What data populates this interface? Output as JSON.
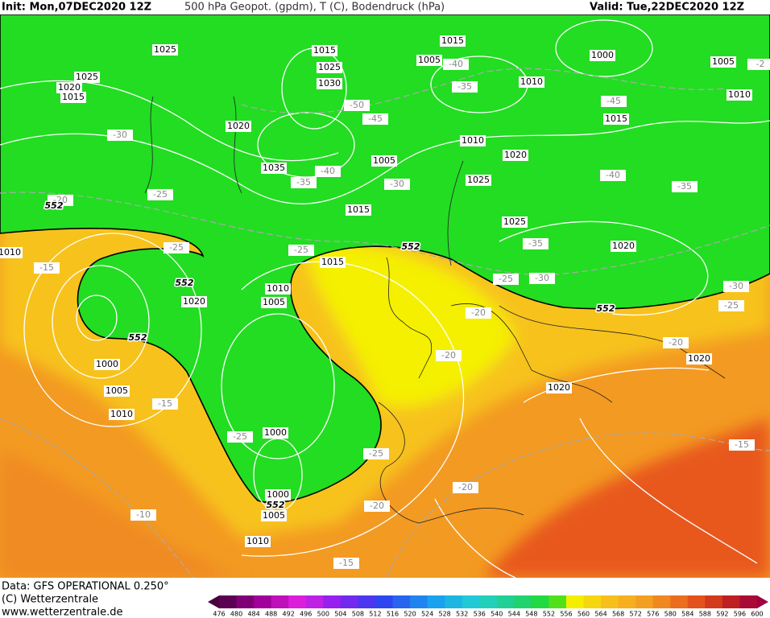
{
  "header": {
    "init": "Init: Mon,07DEC2020 12Z",
    "fields": "500 hPa Geopot. (gpdm), T (C), Bodendruck (hPa)",
    "valid": "Valid: Tue,22DEC2020 12Z"
  },
  "footer": {
    "data": "Data: GFS OPERATIONAL 0.250°",
    "copyright": "(C) Wetterzentrale",
    "url": "www.wetterzentrale.de"
  },
  "colorbar": {
    "labels": [
      476,
      480,
      484,
      488,
      492,
      496,
      500,
      504,
      508,
      512,
      516,
      520,
      524,
      528,
      532,
      536,
      540,
      544,
      548,
      552,
      556,
      560,
      564,
      568,
      572,
      576,
      580,
      584,
      588,
      592,
      596,
      600
    ]
  },
  "pressure_labels": [
    "1025",
    "1025",
    "1020",
    "1015",
    "1015",
    "1025",
    "1030",
    "1015",
    "1005",
    "1000",
    "1005",
    "1010",
    "1010",
    "1015",
    "1020",
    "1010",
    "1020",
    "1035",
    "1005",
    "1025",
    "1015",
    "1025",
    "1020",
    "1010",
    "1015",
    "1010",
    "1005",
    "1020",
    "1020",
    "1000",
    "1005",
    "1010",
    "1020",
    "1000",
    "1000",
    "1005",
    "1010"
  ],
  "temperature_labels": [
    "-40",
    "-35",
    "-45",
    "-50",
    "-45",
    "-30",
    "-40",
    "-35",
    "-30",
    "-40",
    "-35",
    "-25",
    "-20",
    "-25",
    "-25",
    "-35",
    "-25",
    "-30",
    "-30",
    "-25",
    "-15",
    "-20",
    "-20",
    "-20",
    "-15",
    "-25",
    "-25",
    "-15",
    "-20",
    "-20",
    "-10",
    "-15",
    "-2"
  ],
  "height_labels": [
    "552",
    "552",
    "552",
    "552",
    "552",
    "552"
  ]
}
